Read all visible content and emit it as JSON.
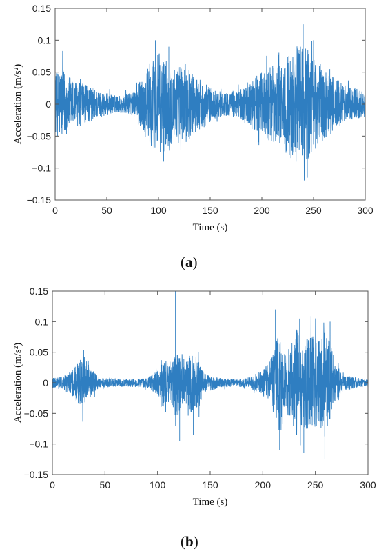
{
  "chart_data": [
    {
      "id": "a",
      "type": "line",
      "panel_label": "a",
      "xlabel": "Time (s)",
      "ylabel": "Acceleration (m/s²)",
      "xlim": [
        0,
        300
      ],
      "ylim": [
        -0.15,
        0.15
      ],
      "xticks": [
        "0",
        "50",
        "100",
        "150",
        "200",
        "250",
        "300"
      ],
      "yticks": [
        "0.15",
        "0.1",
        "0.05",
        "0",
        "−0.05",
        "−0.1",
        "−0.15"
      ],
      "grid": false,
      "series_color": "#2F7EC1",
      "envelope": [
        [
          0,
          0.045
        ],
        [
          5,
          0.06
        ],
        [
          15,
          0.04
        ],
        [
          30,
          0.03
        ],
        [
          45,
          0.02
        ],
        [
          60,
          0.013
        ],
        [
          75,
          0.018
        ],
        [
          85,
          0.045
        ],
        [
          92,
          0.065
        ],
        [
          100,
          0.08
        ],
        [
          105,
          0.075
        ],
        [
          115,
          0.06
        ],
        [
          125,
          0.065
        ],
        [
          135,
          0.045
        ],
        [
          145,
          0.035
        ],
        [
          152,
          0.025
        ],
        [
          160,
          0.02
        ],
        [
          170,
          0.018
        ],
        [
          180,
          0.025
        ],
        [
          190,
          0.04
        ],
        [
          200,
          0.05
        ],
        [
          210,
          0.06
        ],
        [
          220,
          0.07
        ],
        [
          228,
          0.085
        ],
        [
          236,
          0.095
        ],
        [
          243,
          0.09
        ],
        [
          250,
          0.075
        ],
        [
          258,
          0.06
        ],
        [
          268,
          0.045
        ],
        [
          280,
          0.03
        ],
        [
          290,
          0.025
        ],
        [
          300,
          0.022
        ]
      ],
      "peaks": [
        [
          97,
          0.1
        ],
        [
          105,
          -0.09
        ],
        [
          110,
          0.09
        ],
        [
          240,
          0.125
        ],
        [
          244,
          -0.115
        ],
        [
          231,
          0.1
        ],
        [
          250,
          0.1
        ]
      ]
    },
    {
      "id": "b",
      "type": "line",
      "panel_label": "b",
      "xlabel": "Time (s)",
      "ylabel": "Acceleration (m/s²)",
      "xlim": [
        0,
        300
      ],
      "ylim": [
        -0.15,
        0.15
      ],
      "xticks": [
        "0",
        "50",
        "100",
        "150",
        "200",
        "250",
        "300"
      ],
      "yticks": [
        "0.15",
        "0.1",
        "0.05",
        "0",
        "−0.05",
        "−0.1",
        "−0.15"
      ],
      "grid": false,
      "series_color": "#2F7EC1",
      "envelope": [
        [
          0,
          0.008
        ],
        [
          10,
          0.01
        ],
        [
          18,
          0.02
        ],
        [
          25,
          0.035
        ],
        [
          30,
          0.045
        ],
        [
          36,
          0.025
        ],
        [
          45,
          0.008
        ],
        [
          70,
          0.006
        ],
        [
          90,
          0.008
        ],
        [
          100,
          0.02
        ],
        [
          105,
          0.04
        ],
        [
          112,
          0.03
        ],
        [
          118,
          0.06
        ],
        [
          125,
          0.03
        ],
        [
          132,
          0.05
        ],
        [
          138,
          0.045
        ],
        [
          145,
          0.015
        ],
        [
          160,
          0.008
        ],
        [
          175,
          0.006
        ],
        [
          185,
          0.008
        ],
        [
          200,
          0.02
        ],
        [
          210,
          0.05
        ],
        [
          215,
          0.08
        ],
        [
          220,
          0.045
        ],
        [
          226,
          0.06
        ],
        [
          232,
          0.09
        ],
        [
          238,
          0.07
        ],
        [
          245,
          0.08
        ],
        [
          252,
          0.07
        ],
        [
          258,
          0.09
        ],
        [
          262,
          0.08
        ],
        [
          268,
          0.04
        ],
        [
          275,
          0.015
        ],
        [
          290,
          0.008
        ],
        [
          300,
          0.006
        ]
      ],
      "peaks": [
        [
          117,
          0.15
        ],
        [
          121,
          -0.095
        ],
        [
          134,
          -0.085
        ],
        [
          212,
          0.12
        ],
        [
          216,
          -0.11
        ],
        [
          235,
          0.105
        ],
        [
          239,
          -0.115
        ],
        [
          259,
          -0.125
        ],
        [
          264,
          0.1
        ]
      ]
    }
  ]
}
